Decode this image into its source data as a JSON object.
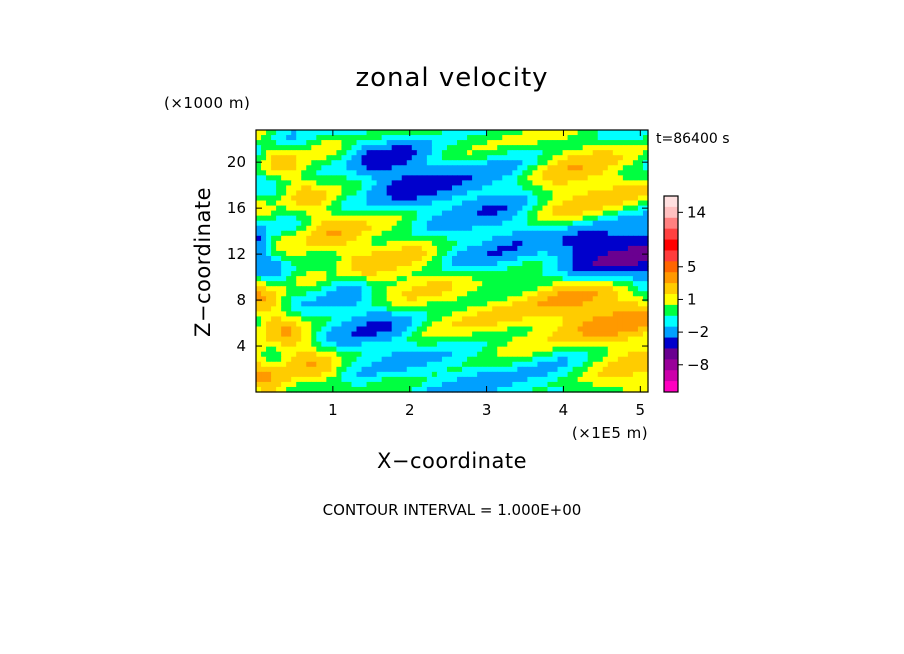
{
  "chart_data": {
    "type": "heatmap",
    "title": "zonal velocity",
    "xlabel": "X−coordinate",
    "ylabel": "Z−coordinate",
    "x_unit": "(×1E5 m)",
    "y_unit": "(×1000 m)",
    "time_label": "t=86400 s",
    "footer": "CONTOUR INTERVAL = 1.000E+00",
    "xlim": [
      0,
      5.1
    ],
    "ylim": [
      0,
      22.8
    ],
    "x_ticks": [
      {
        "value": 1,
        "label": "1"
      },
      {
        "value": 2,
        "label": "2"
      },
      {
        "value": 3,
        "label": "3"
      },
      {
        "value": 4,
        "label": "4"
      },
      {
        "value": 5,
        "label": "5"
      }
    ],
    "y_ticks": [
      {
        "value": 4,
        "label": "4"
      },
      {
        "value": 8,
        "label": "8"
      },
      {
        "value": 12,
        "label": "12"
      },
      {
        "value": 16,
        "label": "16"
      },
      {
        "value": 20,
        "label": "20"
      }
    ],
    "colorbar": {
      "levels": [
        {
          "value": 17,
          "color": "#ffe0e0"
        },
        {
          "value": 15,
          "color": "#ffc0c0"
        },
        {
          "value": 13,
          "color": "#ff8080"
        },
        {
          "value": 11,
          "color": "#ff4040"
        },
        {
          "value": 9,
          "color": "#ff0000"
        },
        {
          "value": 7,
          "color": "#ff3c3c"
        },
        {
          "value": 5.5,
          "color": "#ff6600"
        },
        {
          "value": 4,
          "color": "#ff9900"
        },
        {
          "value": 2.5,
          "color": "#ffcc00"
        },
        {
          "value": 1.5,
          "color": "#ffff00"
        },
        {
          "value": 0.5,
          "color": "#00ff40"
        },
        {
          "value": -0.5,
          "color": "#00ffff"
        },
        {
          "value": -1.5,
          "color": "#00a0ff"
        },
        {
          "value": -3,
          "color": "#0000cc"
        },
        {
          "value": -5,
          "color": "#6a0090"
        },
        {
          "value": -7,
          "color": "#990099"
        },
        {
          "value": -9.5,
          "color": "#cc00aa"
        },
        {
          "value": -12,
          "color": "#ff00c0"
        }
      ],
      "tick_labels": [
        {
          "value": 14,
          "label": "14"
        },
        {
          "value": 5,
          "label": "5"
        },
        {
          "value": 1,
          "label": "1"
        },
        {
          "value": -2,
          "label": "−2"
        },
        {
          "value": -8,
          "label": "−8"
        }
      ]
    },
    "field_features": [
      {
        "x": 0.1,
        "z": 12.3,
        "value": -3.2
      },
      {
        "x": 0.3,
        "z": 8.5,
        "value": 3.5
      },
      {
        "x": 0.45,
        "z": 3.0,
        "value": 3.0
      },
      {
        "x": 0.75,
        "z": 12.5,
        "value": 4.0
      },
      {
        "x": 0.75,
        "z": 18.0,
        "value": 2.0
      },
      {
        "x": 0.75,
        "z": 9.2,
        "value": -2.5
      },
      {
        "x": 1.45,
        "z": 15.8,
        "value": 2.5
      },
      {
        "x": 1.65,
        "z": 17.8,
        "value": -4.5
      },
      {
        "x": 2.1,
        "z": 17.0,
        "value": -3.5
      },
      {
        "x": 1.7,
        "z": 12.5,
        "value": 3.0
      },
      {
        "x": 1.9,
        "z": 9.8,
        "value": 2.5
      },
      {
        "x": 1.45,
        "z": 6.0,
        "value": -2.5
      },
      {
        "x": 2.8,
        "z": 6.0,
        "value": 2.0
      },
      {
        "x": 2.8,
        "z": 2.2,
        "value": -1.5
      },
      {
        "x": 2.9,
        "z": 13.5,
        "value": -2.5
      },
      {
        "x": 3.2,
        "z": 18.6,
        "value": -2.8
      },
      {
        "x": 3.0,
        "z": 21.5,
        "value": 1.2
      },
      {
        "x": 4.0,
        "z": 18.5,
        "value": 3.5
      },
      {
        "x": 4.5,
        "z": 16.2,
        "value": 2.5
      },
      {
        "x": 4.6,
        "z": 12.0,
        "value": -6.0
      },
      {
        "x": 5.0,
        "z": 12.0,
        "value": -4.0
      },
      {
        "x": 4.3,
        "z": 7.5,
        "value": 4.0
      },
      {
        "x": 4.6,
        "z": 7.0,
        "value": 4.5
      },
      {
        "x": 3.5,
        "z": 5.0,
        "value": 2.5
      },
      {
        "x": 4.0,
        "z": 2.0,
        "value": -2.0
      },
      {
        "x": 4.6,
        "z": 1.5,
        "value": 3.0
      },
      {
        "x": 1.7,
        "z": 14.0,
        "value": 1.5
      },
      {
        "x": 2.5,
        "z": 14.0,
        "value": 0.0
      }
    ]
  }
}
